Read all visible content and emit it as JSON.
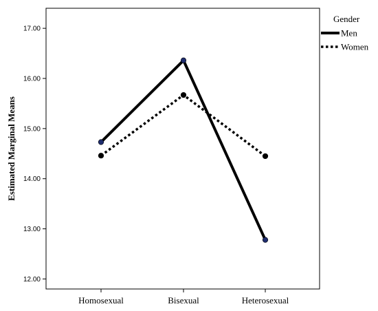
{
  "chart_data": {
    "type": "line",
    "title": "",
    "xlabel": "",
    "ylabel": "Estimated Marginal Means",
    "categories": [
      "Homosexual",
      "Bisexual",
      "Heterosexual"
    ],
    "ylim": [
      11.8,
      17.4
    ],
    "yticks": [
      12.0,
      13.0,
      14.0,
      15.0,
      16.0,
      17.0
    ],
    "ytick_labels": [
      "12.00",
      "13.00",
      "14.00",
      "15.00",
      "16.00",
      "17.00"
    ],
    "grid": false,
    "legend": {
      "title": "Gender",
      "position": "top-right-outside"
    },
    "series": [
      {
        "name": "Men",
        "values": [
          14.73,
          16.36,
          12.78
        ],
        "style": "solid",
        "color": "#000000",
        "marker_color": "#1f2d6e"
      },
      {
        "name": "Women",
        "values": [
          14.46,
          15.67,
          14.45
        ],
        "style": "dotted",
        "color": "#000000",
        "marker_color": "#000000"
      }
    ]
  }
}
